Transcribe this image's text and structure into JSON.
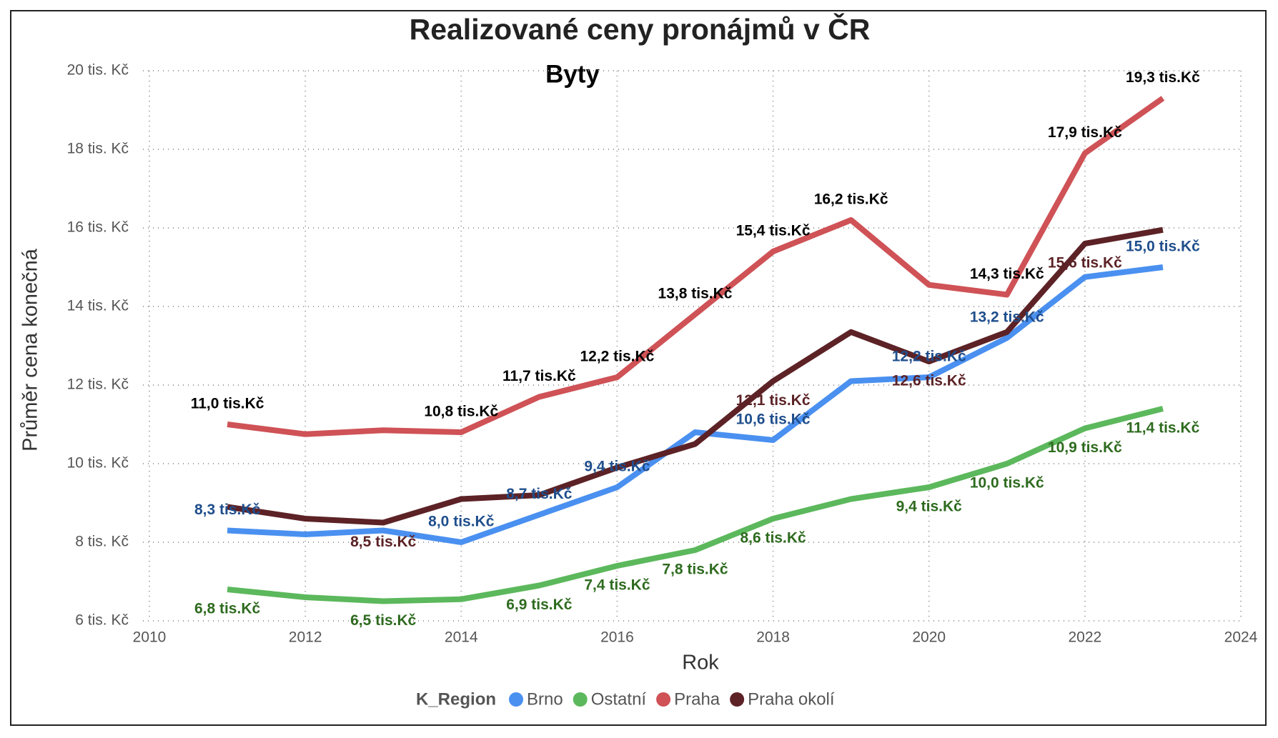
{
  "chart_data": {
    "type": "line",
    "title": "Realizované ceny pronájmů v ČR",
    "subtitle": "Byty",
    "x_label": "Rok",
    "y_label": "Průměr cena konečná",
    "legend_title": "K_Region",
    "grid": true,
    "x": [
      2011,
      2012,
      2013,
      2014,
      2015,
      2016,
      2017,
      2018,
      2019,
      2020,
      2021,
      2022,
      2023
    ],
    "xlim": [
      2010,
      2024
    ],
    "xticks": [
      2010,
      2012,
      2014,
      2016,
      2018,
      2020,
      2022,
      2024
    ],
    "ylim": [
      6,
      20
    ],
    "yticks": [
      {
        "value": 6,
        "label": "6 tis. Kč"
      },
      {
        "value": 8,
        "label": "8 tis. Kč"
      },
      {
        "value": 10,
        "label": "10 tis. Kč"
      },
      {
        "value": 12,
        "label": "12 tis. Kč"
      },
      {
        "value": 14,
        "label": "14 tis. Kč"
      },
      {
        "value": 16,
        "label": "16 tis. Kč"
      },
      {
        "value": 18,
        "label": "18 tis. Kč"
      },
      {
        "value": 20,
        "label": "20 tis. Kč"
      }
    ],
    "series": [
      {
        "name": "Brno",
        "color": "#4a90f0",
        "label_color": "#1f4e8c",
        "values": [
          8.3,
          8.2,
          8.3,
          8.0,
          8.7,
          9.4,
          10.8,
          10.6,
          12.1,
          12.2,
          13.2,
          14.75,
          15.0
        ],
        "value_labels": [
          "8,3 tis.Kč",
          null,
          null,
          "8,0 tis.Kč",
          "8,7 tis.Kč",
          "9,4 tis.Kč",
          null,
          "10,6 tis.Kč",
          null,
          "12,2 tis.Kč",
          "13,2 tis.Kč",
          null,
          "15,0 tis.Kč"
        ]
      },
      {
        "name": "Ostatní",
        "color": "#5cb85c",
        "label_color": "#2e6b1f",
        "values": [
          6.8,
          6.6,
          6.5,
          6.55,
          6.9,
          7.4,
          7.8,
          8.6,
          9.1,
          9.4,
          10.0,
          10.9,
          11.4
        ],
        "value_labels": [
          "6,8 tis.Kč",
          null,
          "6,5 tis.Kč",
          null,
          "6,9 tis.Kč",
          "7,4 tis.Kč",
          "7,8 tis.Kč",
          "8,6 tis.Kč",
          null,
          "9,4 tis.Kč",
          "10,0 tis.Kč",
          "10,9 tis.Kč",
          "11,4 tis.Kč"
        ]
      },
      {
        "name": "Praha",
        "color": "#cf5256",
        "label_color": "#000000",
        "values": [
          11.0,
          10.75,
          10.85,
          10.8,
          11.7,
          12.2,
          13.8,
          15.4,
          16.2,
          14.55,
          14.3,
          17.9,
          19.3
        ],
        "value_labels": [
          "11,0 tis.Kč",
          null,
          null,
          "10,8 tis.Kč",
          "11,7 tis.Kč",
          "12,2 tis.Kč",
          "13,8 tis.Kč",
          "15,4 tis.Kč",
          "16,2 tis.Kč",
          null,
          "14,3 tis.Kč",
          "17,9 tis.Kč",
          "19,3 tis.Kč"
        ]
      },
      {
        "name": "Praha okolí",
        "color": "#5c2226",
        "label_color": "#5c2226",
        "values": [
          8.9,
          8.6,
          8.5,
          9.1,
          9.2,
          9.9,
          10.5,
          12.1,
          13.35,
          12.6,
          13.35,
          15.6,
          15.95
        ],
        "value_labels": [
          null,
          null,
          "8,5 tis.Kč",
          null,
          null,
          null,
          null,
          "12,1 tis.Kč",
          null,
          "12,6 tis.Kč",
          null,
          "15,6 tis.Kč",
          null
        ]
      }
    ]
  }
}
